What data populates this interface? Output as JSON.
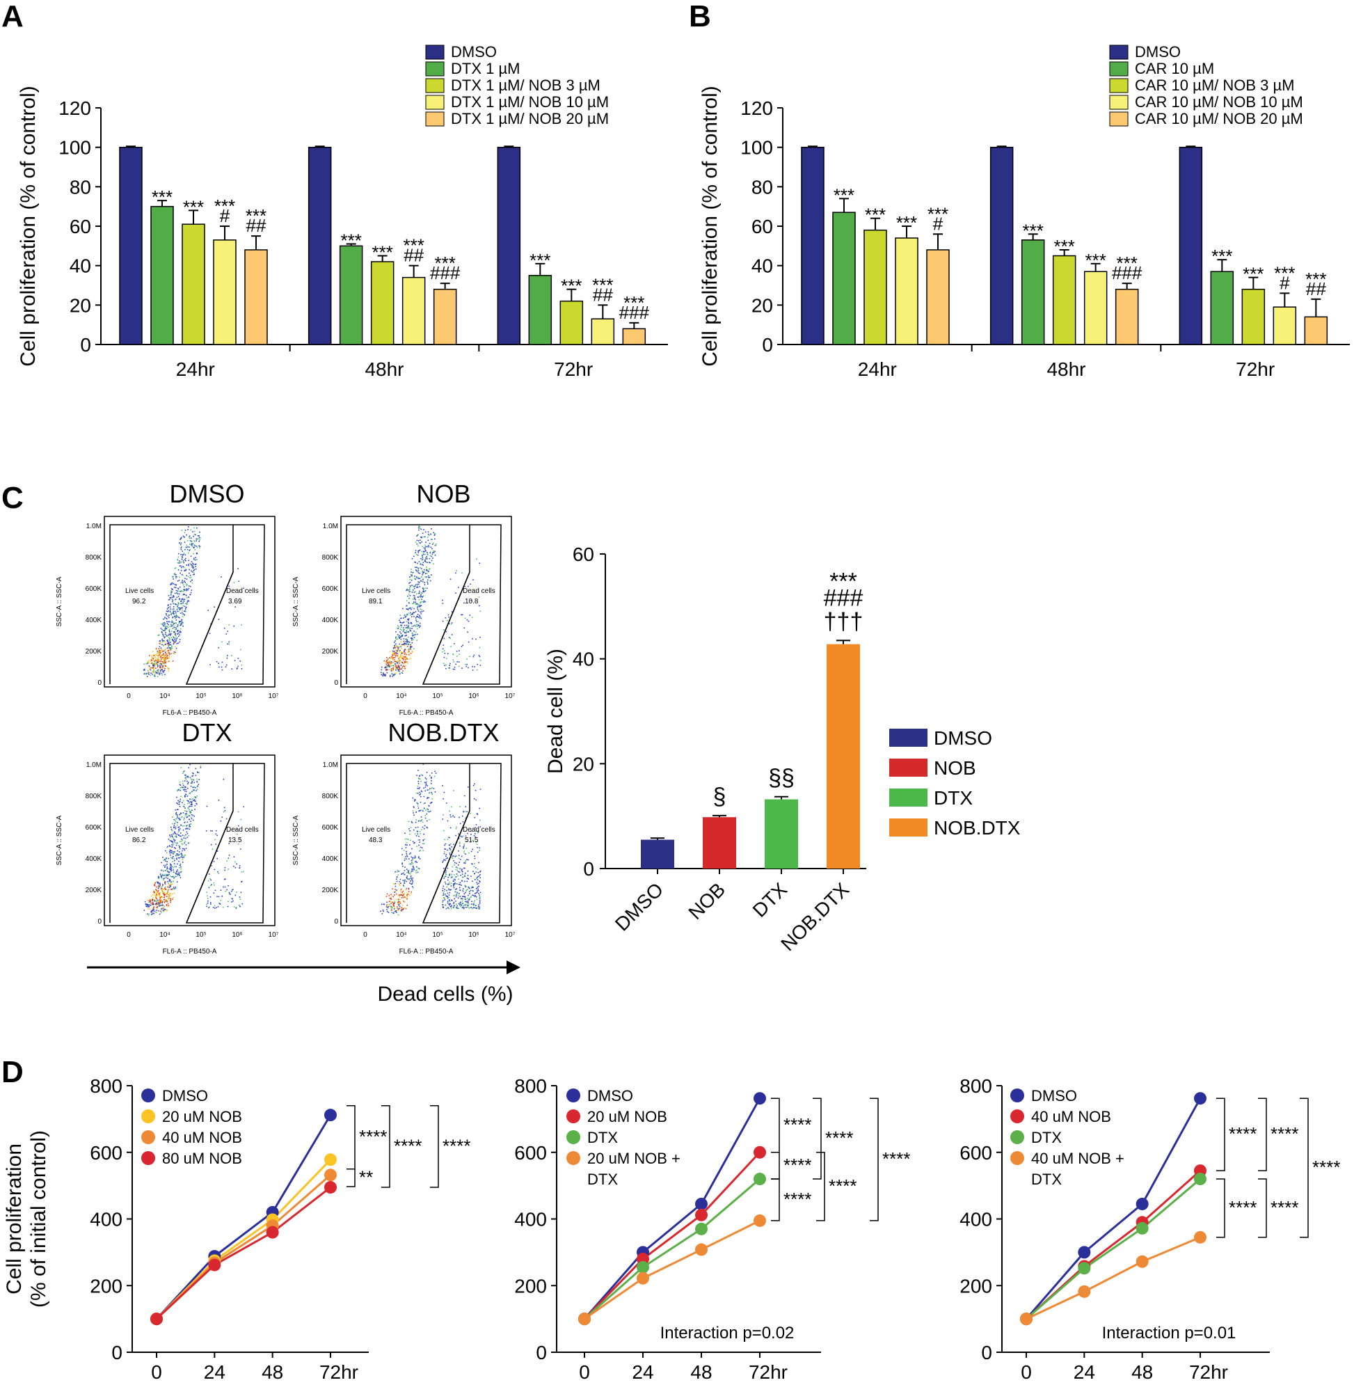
{
  "panel_labels": [
    "A",
    "B",
    "C",
    "D"
  ],
  "colors": {
    "dmso": "#2b2f86",
    "green": "#52ac47",
    "lime": "#cbd82f",
    "yellow": "#f7f277",
    "peach": "#fcc971",
    "nob": "#d42a2c",
    "dtx": "#4cb84a",
    "nobdtx": "#f28a25",
    "line_dmso": "#2b2f99",
    "line_y": "#fcc325",
    "line_o": "#ee8a35",
    "line_r": "#d9272f",
    "line_g": "#5bb04a"
  },
  "chart_data": [
    {
      "id": "A",
      "type": "bar",
      "ylabel": "Cell proliferation (% of control)",
      "ylim": [
        0,
        120
      ],
      "yticks": [
        0,
        20,
        40,
        60,
        80,
        100,
        120
      ],
      "categories": [
        "24hr",
        "48hr",
        "72hr"
      ],
      "series": [
        {
          "name": "DMSO",
          "values": [
            100,
            100,
            100
          ],
          "errors": [
            0.5,
            0.5,
            0.5
          ]
        },
        {
          "name": "DTX 1 µM",
          "values": [
            70,
            50,
            35
          ],
          "errors": [
            3,
            1,
            6
          ]
        },
        {
          "name": "DTX 1 µM/ NOB 3 µM",
          "values": [
            61,
            42,
            22
          ],
          "errors": [
            7,
            3,
            6
          ]
        },
        {
          "name": "DTX 1 µM/ NOB 10 µM",
          "values": [
            53,
            34,
            13
          ],
          "errors": [
            7,
            6,
            7
          ]
        },
        {
          "name": "DTX 1 µM/ NOB 20 µM",
          "values": [
            48,
            28,
            8
          ],
          "errors": [
            7,
            3,
            3
          ]
        }
      ],
      "annotations": [
        [
          [],
          [
            "***"
          ],
          [
            "***"
          ],
          [
            "***",
            "#"
          ],
          [
            "***",
            "##"
          ]
        ],
        [
          [],
          [
            "***"
          ],
          [
            "***"
          ],
          [
            "***",
            "##"
          ],
          [
            "***",
            "###"
          ]
        ],
        [
          [],
          [
            "***"
          ],
          [
            "***"
          ],
          [
            "***",
            "##"
          ],
          [
            "***",
            "###"
          ]
        ]
      ]
    },
    {
      "id": "B",
      "type": "bar",
      "ylabel": "Cell proliferation (% of control)",
      "ylim": [
        0,
        120
      ],
      "yticks": [
        0,
        20,
        40,
        60,
        80,
        100,
        120
      ],
      "categories": [
        "24hr",
        "48hr",
        "72hr"
      ],
      "series": [
        {
          "name": "DMSO",
          "values": [
            100,
            100,
            100
          ],
          "errors": [
            0.5,
            0.5,
            0.5
          ]
        },
        {
          "name": "CAR 10 µM",
          "values": [
            67,
            53,
            37
          ],
          "errors": [
            7,
            3,
            6
          ]
        },
        {
          "name": "CAR 10 µM/ NOB 3 µM",
          "values": [
            58,
            45,
            28
          ],
          "errors": [
            6,
            3,
            6
          ]
        },
        {
          "name": "CAR 10 µM/ NOB 10 µM",
          "values": [
            54,
            37,
            19
          ],
          "errors": [
            6,
            4,
            7
          ]
        },
        {
          "name": "CAR 10 µM/ NOB 20 µM",
          "values": [
            48,
            28,
            14
          ],
          "errors": [
            8,
            3,
            9
          ]
        }
      ],
      "annotations": [
        [
          [],
          [
            "***"
          ],
          [
            "***"
          ],
          [
            "***"
          ],
          [
            "***",
            "#"
          ]
        ],
        [
          [],
          [
            "***"
          ],
          [
            "***"
          ],
          [
            "***"
          ],
          [
            "***",
            "###"
          ]
        ],
        [
          [],
          [
            "***"
          ],
          [
            "***"
          ],
          [
            "***",
            "#"
          ],
          [
            "***",
            "##"
          ]
        ]
      ]
    },
    {
      "id": "C",
      "type": "bar",
      "ylabel": "Dead cell (%)",
      "ylim": [
        0,
        60
      ],
      "yticks": [
        0,
        20,
        40,
        60
      ],
      "categories": [
        "DMSO",
        "NOB",
        "DTX",
        "NOB.DTX"
      ],
      "values": [
        5.5,
        9.8,
        13.2,
        42.8
      ],
      "errors": [
        0.3,
        0.3,
        0.5,
        0.7
      ],
      "legend": [
        "DMSO",
        "NOB",
        "DTX",
        "NOB.DTX"
      ],
      "annotations": [
        [],
        [
          "§"
        ],
        [
          "§§"
        ],
        [
          "***",
          "###",
          "†††"
        ]
      ]
    },
    {
      "id": "D1",
      "type": "line",
      "ylabel": "Cell proliferation (% of initial control)",
      "ylim": [
        0,
        800
      ],
      "yticks": [
        0,
        200,
        400,
        600,
        800
      ],
      "x": [
        0,
        24,
        48,
        72
      ],
      "xticklabels": [
        "0",
        "24",
        "48",
        "72hr"
      ],
      "series": [
        {
          "name": "DMSO",
          "values": [
            100,
            288,
            420,
            712
          ]
        },
        {
          "name": "20 uM NOB",
          "values": [
            100,
            275,
            398,
            578
          ]
        },
        {
          "name": "40 uM NOB",
          "values": [
            100,
            268,
            380,
            532
          ]
        },
        {
          "name": "80 uM NOB",
          "values": [
            100,
            262,
            360,
            495
          ]
        }
      ],
      "brackets": [
        "****",
        "****",
        "****",
        "**"
      ],
      "note": ""
    },
    {
      "id": "D2",
      "type": "line",
      "ylim": [
        0,
        800
      ],
      "yticks": [
        0,
        200,
        400,
        600,
        800
      ],
      "x": [
        0,
        24,
        48,
        72
      ],
      "xticklabels": [
        "0",
        "24",
        "48",
        "72hr"
      ],
      "series": [
        {
          "name": "DMSO",
          "values": [
            100,
            300,
            445,
            762
          ]
        },
        {
          "name": "20 uM NOB",
          "values": [
            100,
            280,
            412,
            600
          ]
        },
        {
          "name": "DTX",
          "values": [
            100,
            255,
            370,
            520
          ]
        },
        {
          "name": "20 uM NOB + DTX",
          "values": [
            100,
            222,
            308,
            395
          ]
        }
      ],
      "brackets": [
        "****",
        "****",
        "****",
        "****",
        "****",
        "****"
      ],
      "note": "Interaction p=0.02"
    },
    {
      "id": "D3",
      "type": "line",
      "ylim": [
        0,
        800
      ],
      "yticks": [
        0,
        200,
        400,
        600,
        800
      ],
      "x": [
        0,
        24,
        48,
        72
      ],
      "xticklabels": [
        "0",
        "24",
        "48",
        "72hr"
      ],
      "series": [
        {
          "name": "DMSO",
          "values": [
            100,
            300,
            445,
            762
          ]
        },
        {
          "name": "40 uM NOB",
          "values": [
            100,
            258,
            390,
            545
          ]
        },
        {
          "name": "DTX",
          "values": [
            100,
            252,
            372,
            520
          ]
        },
        {
          "name": "40 uM NOB + DTX",
          "values": [
            100,
            182,
            272,
            345
          ]
        }
      ],
      "brackets": [
        "****",
        "****",
        "****",
        "****",
        "****"
      ],
      "note": "Interaction p=0.01"
    }
  ],
  "flow": {
    "panels": [
      {
        "title": "DMSO",
        "live": "96.2",
        "dead": "3.69"
      },
      {
        "title": "NOB",
        "live": "89.1",
        "dead": "10.8"
      },
      {
        "title": "DTX",
        "live": "86.2",
        "dead": "13.5"
      },
      {
        "title": "NOB.DTX",
        "live": "48.3",
        "dead": "51.5"
      }
    ],
    "live_label": "Live cells",
    "dead_label": "Dead cells",
    "yaxis_label": "SSC-A :: SSC-A",
    "xaxis_label": "FL6-A :: PB450-A",
    "yticks": [
      "0",
      "200K",
      "400K",
      "600K",
      "800K",
      "1.0M"
    ],
    "xticks": [
      "0",
      "10⁴",
      "10⁵",
      "10⁶",
      "10⁷"
    ],
    "arrow_label": "Dead cells (%)"
  }
}
